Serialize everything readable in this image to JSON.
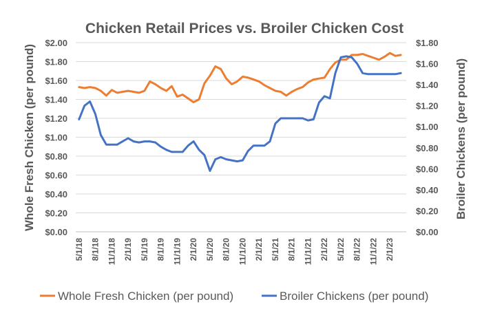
{
  "chart_data": {
    "type": "line",
    "title": "Chicken Retail Prices vs. Broiler Chicken Cost",
    "ylabel_left": "Whole Fresh Chicken (per pound)",
    "ylabel_right": "Broiler Chickens (per pound)",
    "ylim_left": [
      0,
      2.0
    ],
    "ylim_right": [
      0,
      1.8
    ],
    "yticks_left": [
      "$0.00",
      "$0.20",
      "$0.40",
      "$0.60",
      "$0.80",
      "$1.00",
      "$1.20",
      "$1.40",
      "$1.60",
      "$1.80",
      "$2.00"
    ],
    "yticks_right": [
      "$0.00",
      "$0.20",
      "$0.40",
      "$0.60",
      "$0.80",
      "$1.00",
      "$1.20",
      "$1.40",
      "$1.60",
      "$1.80"
    ],
    "xtick_labels": [
      "5/1/18",
      "8/1/18",
      "11/1/18",
      "2/1/19",
      "5/1/19",
      "8/1/19",
      "11/1/19",
      "2/1/20",
      "5/1/20",
      "8/1/20",
      "11/1/20",
      "2/1/21",
      "5/1/21",
      "8/1/21",
      "11/1/21",
      "2/1/22",
      "5/1/22",
      "8/1/22",
      "11/1/22",
      "2/1/23"
    ],
    "x": [
      "5/1/18",
      "6/1/18",
      "7/1/18",
      "8/1/18",
      "9/1/18",
      "10/1/18",
      "11/1/18",
      "12/1/18",
      "1/1/19",
      "2/1/19",
      "3/1/19",
      "4/1/19",
      "5/1/19",
      "6/1/19",
      "7/1/19",
      "8/1/19",
      "9/1/19",
      "10/1/19",
      "11/1/19",
      "12/1/19",
      "1/1/20",
      "2/1/20",
      "3/1/20",
      "4/1/20",
      "5/1/20",
      "6/1/20",
      "7/1/20",
      "8/1/20",
      "9/1/20",
      "10/1/20",
      "11/1/20",
      "12/1/20",
      "1/1/21",
      "2/1/21",
      "3/1/21",
      "4/1/21",
      "5/1/21",
      "6/1/21",
      "7/1/21",
      "8/1/21",
      "9/1/21",
      "10/1/21",
      "11/1/21",
      "12/1/21",
      "1/1/22",
      "2/1/22",
      "3/1/22",
      "4/1/22",
      "5/1/22",
      "6/1/22",
      "7/1/22",
      "8/1/22",
      "9/1/22",
      "10/1/22",
      "11/1/22",
      "12/1/22",
      "1/1/23",
      "2/1/23",
      "3/1/23",
      "4/1/23"
    ],
    "series": [
      {
        "name": "Whole Fresh Chicken (per pound)",
        "axis": "left",
        "color": "#ED7D31",
        "values": [
          1.53,
          1.52,
          1.53,
          1.52,
          1.49,
          1.44,
          1.5,
          1.47,
          1.48,
          1.49,
          1.48,
          1.47,
          1.49,
          1.59,
          1.56,
          1.52,
          1.49,
          1.54,
          1.43,
          1.45,
          1.41,
          1.37,
          1.4,
          1.57,
          1.65,
          1.75,
          1.72,
          1.62,
          1.56,
          1.59,
          1.64,
          1.63,
          1.61,
          1.59,
          1.55,
          1.52,
          1.49,
          1.48,
          1.44,
          1.48,
          1.51,
          1.53,
          1.58,
          1.61,
          1.62,
          1.63,
          1.72,
          1.79,
          1.82,
          1.82,
          1.87,
          1.87,
          1.88,
          1.86,
          1.84,
          1.82,
          1.85,
          1.89,
          1.86,
          1.87
        ]
      },
      {
        "name": "Broiler Chickens (per pound)",
        "axis": "right",
        "color": "#4472C4",
        "values": [
          1.07,
          1.2,
          1.24,
          1.12,
          0.92,
          0.83,
          0.83,
          0.83,
          0.86,
          0.89,
          0.86,
          0.85,
          0.86,
          0.86,
          0.85,
          0.81,
          0.78,
          0.76,
          0.76,
          0.76,
          0.82,
          0.86,
          0.78,
          0.73,
          0.58,
          0.69,
          0.71,
          0.69,
          0.68,
          0.67,
          0.68,
          0.77,
          0.82,
          0.82,
          0.82,
          0.86,
          1.03,
          1.08,
          1.08,
          1.08,
          1.08,
          1.08,
          1.06,
          1.07,
          1.23,
          1.29,
          1.27,
          1.51,
          1.66,
          1.67,
          1.66,
          1.6,
          1.51,
          1.5,
          1.5,
          1.5,
          1.5,
          1.5,
          1.5,
          1.51
        ]
      }
    ],
    "grid": true,
    "legend_position": "bottom"
  }
}
